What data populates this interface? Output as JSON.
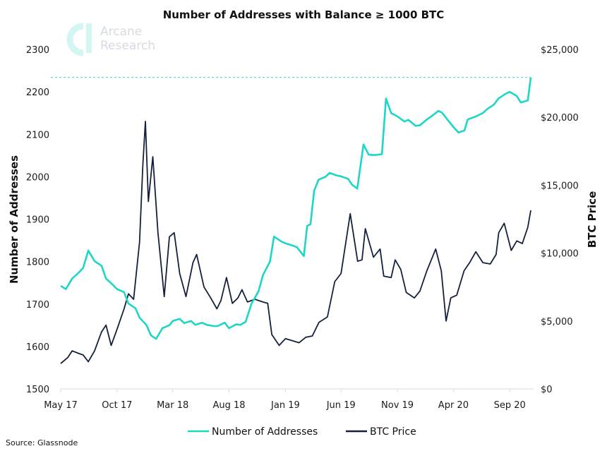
{
  "chart_data": {
    "type": "line",
    "title": "Number of Addresses with Balance ≥ 1000 BTC",
    "ylabel_left": "Number of Addresses",
    "ylabel_right": "BTC Price",
    "ylim_left": [
      1500,
      2300
    ],
    "ylim_right": [
      0,
      25000
    ],
    "yticks_left": [
      "1500",
      "1600",
      "1700",
      "1800",
      "1900",
      "2000",
      "2100",
      "2200",
      "2300"
    ],
    "yticks_right": [
      "$0",
      "$5,000",
      "$10,000",
      "$15,000",
      "$20,000",
      "$25,000"
    ],
    "xlim": [
      "2017-05-01",
      "2020-10-28"
    ],
    "xticks": [
      {
        "date": "2017-05-01",
        "label": "May 17"
      },
      {
        "date": "2017-10-01",
        "label": "Oct 17"
      },
      {
        "date": "2018-03-01",
        "label": "Mar 18"
      },
      {
        "date": "2018-08-01",
        "label": "Aug 18"
      },
      {
        "date": "2019-01-01",
        "label": "Jan 19"
      },
      {
        "date": "2019-06-01",
        "label": "Jun 19"
      },
      {
        "date": "2019-11-01",
        "label": "Nov 19"
      },
      {
        "date": "2020-04-01",
        "label": "Apr 20"
      },
      {
        "date": "2020-09-01",
        "label": "Sep 20"
      }
    ],
    "grid": false,
    "legend_placement": "bottom",
    "reference_line": {
      "axis": "left",
      "value": 2234,
      "style": "dashed",
      "color": "#3fd6c8"
    },
    "series": [
      {
        "name": "Number of Addresses",
        "axis": "left",
        "color": "#1ed6c6",
        "points": [
          [
            "2017-05-01",
            1743
          ],
          [
            "2017-05-15",
            1735
          ],
          [
            "2017-06-01",
            1760
          ],
          [
            "2017-06-20",
            1775
          ],
          [
            "2017-07-01",
            1785
          ],
          [
            "2017-07-15",
            1826
          ],
          [
            "2017-08-01",
            1801
          ],
          [
            "2017-08-20",
            1790
          ],
          [
            "2017-09-01",
            1760
          ],
          [
            "2017-09-20",
            1745
          ],
          [
            "2017-10-01",
            1735
          ],
          [
            "2017-10-20",
            1728
          ],
          [
            "2017-11-01",
            1701
          ],
          [
            "2017-11-20",
            1690
          ],
          [
            "2017-12-01",
            1668
          ],
          [
            "2017-12-20",
            1650
          ],
          [
            "2018-01-01",
            1626
          ],
          [
            "2018-01-15",
            1618
          ],
          [
            "2018-02-01",
            1643
          ],
          [
            "2018-02-20",
            1650
          ],
          [
            "2018-03-01",
            1660
          ],
          [
            "2018-03-20",
            1665
          ],
          [
            "2018-04-01",
            1655
          ],
          [
            "2018-04-20",
            1660
          ],
          [
            "2018-05-01",
            1651
          ],
          [
            "2018-05-20",
            1656
          ],
          [
            "2018-06-01",
            1651
          ],
          [
            "2018-06-20",
            1648
          ],
          [
            "2018-07-01",
            1648
          ],
          [
            "2018-07-20",
            1656
          ],
          [
            "2018-08-01",
            1643
          ],
          [
            "2018-08-20",
            1652
          ],
          [
            "2018-09-01",
            1651
          ],
          [
            "2018-09-15",
            1658
          ],
          [
            "2018-10-01",
            1701
          ],
          [
            "2018-10-20",
            1730
          ],
          [
            "2018-11-01",
            1768
          ],
          [
            "2018-11-20",
            1800
          ],
          [
            "2018-12-01",
            1859
          ],
          [
            "2018-12-20",
            1848
          ],
          [
            "2019-01-01",
            1843
          ],
          [
            "2019-01-20",
            1838
          ],
          [
            "2019-02-01",
            1834
          ],
          [
            "2019-02-20",
            1813
          ],
          [
            "2019-03-01",
            1884
          ],
          [
            "2019-03-10",
            1888
          ],
          [
            "2019-03-20",
            1967
          ],
          [
            "2019-04-01",
            1993
          ],
          [
            "2019-04-20",
            2000
          ],
          [
            "2019-05-01",
            2009
          ],
          [
            "2019-05-20",
            2003
          ],
          [
            "2019-06-01",
            2001
          ],
          [
            "2019-06-20",
            1995
          ],
          [
            "2019-07-01",
            1981
          ],
          [
            "2019-07-15",
            1972
          ],
          [
            "2019-08-01",
            2076
          ],
          [
            "2019-08-15",
            2052
          ],
          [
            "2019-09-01",
            2051
          ],
          [
            "2019-09-20",
            2053
          ],
          [
            "2019-10-01",
            2184
          ],
          [
            "2019-10-15",
            2150
          ],
          [
            "2019-11-01",
            2142
          ],
          [
            "2019-11-20",
            2130
          ],
          [
            "2019-12-01",
            2134
          ],
          [
            "2019-12-20",
            2120
          ],
          [
            "2020-01-01",
            2121
          ],
          [
            "2020-01-20",
            2135
          ],
          [
            "2020-02-01",
            2142
          ],
          [
            "2020-02-20",
            2155
          ],
          [
            "2020-03-01",
            2151
          ],
          [
            "2020-03-20",
            2130
          ],
          [
            "2020-04-01",
            2117
          ],
          [
            "2020-04-15",
            2104
          ],
          [
            "2020-05-01",
            2109
          ],
          [
            "2020-05-10",
            2135
          ],
          [
            "2020-06-01",
            2142
          ],
          [
            "2020-06-20",
            2150
          ],
          [
            "2020-07-01",
            2159
          ],
          [
            "2020-07-20",
            2170
          ],
          [
            "2020-08-01",
            2184
          ],
          [
            "2020-08-20",
            2195
          ],
          [
            "2020-09-01",
            2200
          ],
          [
            "2020-09-20",
            2190
          ],
          [
            "2020-10-01",
            2175
          ],
          [
            "2020-10-20",
            2180
          ],
          [
            "2020-10-28",
            2234
          ]
        ]
      },
      {
        "name": "BTC Price",
        "axis": "right",
        "color": "#13213d",
        "points": [
          [
            "2017-05-01",
            1870
          ],
          [
            "2017-05-20",
            2300
          ],
          [
            "2017-06-01",
            2800
          ],
          [
            "2017-06-20",
            2600
          ],
          [
            "2017-07-01",
            2500
          ],
          [
            "2017-07-15",
            2000
          ],
          [
            "2017-08-01",
            2800
          ],
          [
            "2017-08-20",
            4200
          ],
          [
            "2017-09-01",
            4700
          ],
          [
            "2017-09-15",
            3200
          ],
          [
            "2017-10-01",
            4400
          ],
          [
            "2017-10-20",
            5900
          ],
          [
            "2017-11-01",
            7000
          ],
          [
            "2017-11-15",
            6600
          ],
          [
            "2017-12-01",
            10800
          ],
          [
            "2017-12-10",
            16500
          ],
          [
            "2017-12-17",
            19700
          ],
          [
            "2017-12-25",
            13800
          ],
          [
            "2018-01-06",
            17100
          ],
          [
            "2018-01-20",
            11500
          ],
          [
            "2018-02-06",
            6800
          ],
          [
            "2018-02-20",
            11200
          ],
          [
            "2018-03-05",
            11500
          ],
          [
            "2018-03-20",
            8500
          ],
          [
            "2018-04-06",
            6800
          ],
          [
            "2018-04-25",
            9300
          ],
          [
            "2018-05-05",
            9900
          ],
          [
            "2018-05-25",
            7500
          ],
          [
            "2018-06-10",
            6800
          ],
          [
            "2018-06-29",
            5900
          ],
          [
            "2018-07-10",
            6500
          ],
          [
            "2018-07-25",
            8200
          ],
          [
            "2018-08-10",
            6300
          ],
          [
            "2018-08-25",
            6700
          ],
          [
            "2018-09-05",
            7300
          ],
          [
            "2018-09-20",
            6400
          ],
          [
            "2018-10-10",
            6600
          ],
          [
            "2018-11-01",
            6400
          ],
          [
            "2018-11-14",
            6300
          ],
          [
            "2018-11-25",
            4000
          ],
          [
            "2018-12-15",
            3200
          ],
          [
            "2019-01-01",
            3700
          ],
          [
            "2019-01-20",
            3550
          ],
          [
            "2019-02-07",
            3400
          ],
          [
            "2019-02-25",
            3800
          ],
          [
            "2019-03-15",
            3900
          ],
          [
            "2019-04-02",
            4900
          ],
          [
            "2019-04-25",
            5300
          ],
          [
            "2019-05-15",
            7900
          ],
          [
            "2019-06-01",
            8500
          ],
          [
            "2019-06-26",
            12900
          ],
          [
            "2019-07-16",
            9400
          ],
          [
            "2019-07-28",
            9500
          ],
          [
            "2019-08-06",
            11800
          ],
          [
            "2019-08-28",
            9700
          ],
          [
            "2019-09-15",
            10300
          ],
          [
            "2019-09-25",
            8300
          ],
          [
            "2019-10-15",
            8200
          ],
          [
            "2019-10-26",
            9500
          ],
          [
            "2019-11-10",
            8800
          ],
          [
            "2019-11-25",
            7100
          ],
          [
            "2019-12-17",
            6700
          ],
          [
            "2020-01-01",
            7200
          ],
          [
            "2020-01-20",
            8700
          ],
          [
            "2020-02-13",
            10300
          ],
          [
            "2020-02-28",
            8700
          ],
          [
            "2020-03-12",
            5000
          ],
          [
            "2020-03-25",
            6700
          ],
          [
            "2020-04-10",
            6900
          ],
          [
            "2020-04-30",
            8700
          ],
          [
            "2020-05-15",
            9300
          ],
          [
            "2020-06-01",
            10100
          ],
          [
            "2020-06-20",
            9300
          ],
          [
            "2020-07-10",
            9200
          ],
          [
            "2020-07-26",
            9900
          ],
          [
            "2020-08-02",
            11500
          ],
          [
            "2020-08-17",
            12200
          ],
          [
            "2020-09-05",
            10200
          ],
          [
            "2020-09-20",
            10900
          ],
          [
            "2020-10-05",
            10700
          ],
          [
            "2020-10-20",
            11900
          ],
          [
            "2020-10-28",
            13150
          ]
        ]
      }
    ],
    "source": "Source: Glassnode"
  },
  "logo": {
    "line1": "Arcane",
    "line2": "Research"
  }
}
